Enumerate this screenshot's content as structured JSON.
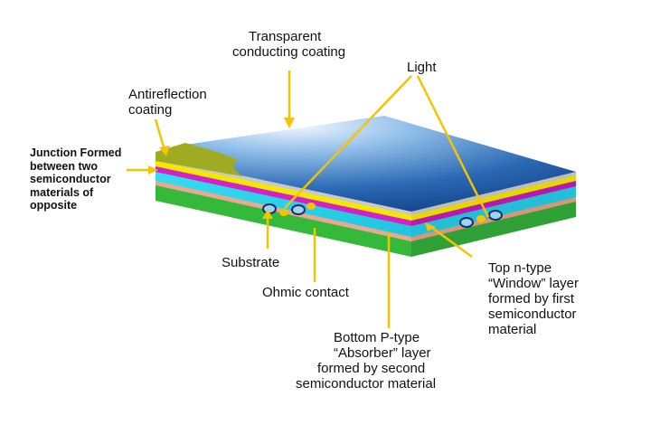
{
  "labels": {
    "transparent_coating": [
      "Transparent",
      "conducting coating"
    ],
    "light": "Light",
    "antireflection": [
      "Antireflection",
      "coating"
    ],
    "junction": [
      "Junction Formed",
      "between two",
      "semiconductor",
      "materials of",
      "opposite"
    ],
    "substrate": "Substrate",
    "ohmic_contact": "Ohmic contact",
    "top_n_type": [
      "Top n-type",
      "“Window” layer",
      "formed by first",
      "semiconductor",
      "material"
    ],
    "bottom_p_type": [
      "Bottom P-type",
      "“Absorber” layer",
      "formed by second",
      "semiconductor material"
    ]
  },
  "colors": {
    "leader_line": "#f5c400",
    "top_surface_light": "#eaf4ff",
    "top_surface_dark": "#1f5fa8",
    "antireflection_layer": "#9aa81e",
    "yellow_layer": "#f2e600",
    "magenta_layer": "#d21ec8",
    "cyan_layer": "#29d3e8",
    "salmon_layer": "#e9a48a",
    "green_layer": "#33b83a"
  }
}
